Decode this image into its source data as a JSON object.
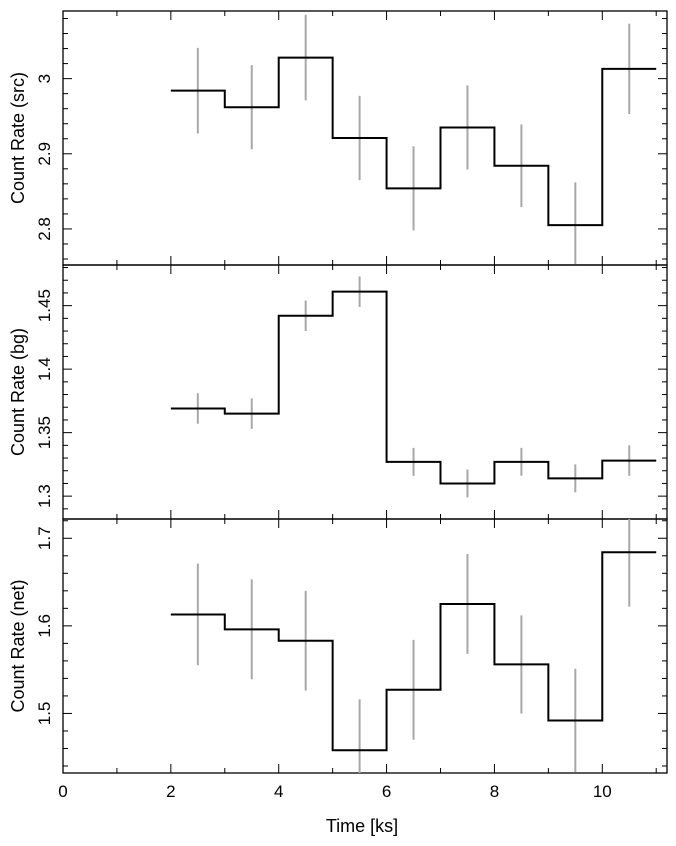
{
  "chart_data": [
    {
      "type": "line",
      "ylabel": "Count Rate (src)",
      "xlim": [
        0,
        11.2
      ],
      "ylim": [
        2.752,
        3.09
      ],
      "x_bins": [
        [
          2,
          3
        ],
        [
          3,
          4
        ],
        [
          4,
          5
        ],
        [
          5,
          6
        ],
        [
          6,
          7
        ],
        [
          7,
          8
        ],
        [
          8,
          9
        ],
        [
          9,
          10
        ],
        [
          10,
          11
        ]
      ],
      "x_centers": [
        2.5,
        3.5,
        4.5,
        5.5,
        6.5,
        7.5,
        8.5,
        9.5,
        10.5
      ],
      "values": [
        2.984,
        2.962,
        3.028,
        2.921,
        2.854,
        2.935,
        2.884,
        2.805,
        3.013
      ],
      "errors": [
        0.057,
        0.056,
        0.057,
        0.056,
        0.056,
        0.056,
        0.055,
        0.057,
        0.06
      ],
      "yticks": [
        2.8,
        2.9,
        3.0
      ],
      "yticklabels": [
        "2.8",
        "2.9",
        "3"
      ]
    },
    {
      "type": "line",
      "ylabel": "Count Rate (bg)",
      "xlim": [
        0,
        11.2
      ],
      "ylim": [
        1.282,
        1.482
      ],
      "x_bins": [
        [
          2,
          3
        ],
        [
          3,
          4
        ],
        [
          4,
          5
        ],
        [
          5,
          6
        ],
        [
          6,
          7
        ],
        [
          7,
          8
        ],
        [
          8,
          9
        ],
        [
          9,
          10
        ],
        [
          10,
          11
        ]
      ],
      "x_centers": [
        2.5,
        3.5,
        4.5,
        5.5,
        6.5,
        7.5,
        8.5,
        9.5,
        10.5
      ],
      "values": [
        1.369,
        1.365,
        1.442,
        1.461,
        1.327,
        1.31,
        1.327,
        1.314,
        1.328
      ],
      "errors": [
        0.012,
        0.012,
        0.012,
        0.012,
        0.011,
        0.011,
        0.011,
        0.011,
        0.012
      ],
      "yticks": [
        1.3,
        1.35,
        1.4,
        1.45
      ],
      "yticklabels": [
        "1.3",
        "1.35",
        "1.4",
        "1.45"
      ]
    },
    {
      "type": "line",
      "ylabel": "Count Rate (net)",
      "xlabel": "Time [ks]",
      "xlim": [
        0,
        11.2
      ],
      "ylim": [
        1.432,
        1.722
      ],
      "x_bins": [
        [
          2,
          3
        ],
        [
          3,
          4
        ],
        [
          4,
          5
        ],
        [
          5,
          6
        ],
        [
          6,
          7
        ],
        [
          7,
          8
        ],
        [
          8,
          9
        ],
        [
          9,
          10
        ],
        [
          10,
          11
        ]
      ],
      "x_centers": [
        2.5,
        3.5,
        4.5,
        5.5,
        6.5,
        7.5,
        8.5,
        9.5,
        10.5
      ],
      "values": [
        1.613,
        1.596,
        1.583,
        1.458,
        1.527,
        1.625,
        1.556,
        1.492,
        1.684
      ],
      "errors": [
        0.058,
        0.057,
        0.057,
        0.058,
        0.057,
        0.057,
        0.056,
        0.059,
        0.062
      ],
      "xticks": [
        0,
        2,
        4,
        6,
        8,
        10
      ],
      "xticklabels": [
        "0",
        "2",
        "4",
        "6",
        "8",
        "10"
      ],
      "yticks": [
        1.5,
        1.6,
        1.7
      ],
      "yticklabels": [
        "1.5",
        "1.6",
        "1.7"
      ]
    }
  ]
}
